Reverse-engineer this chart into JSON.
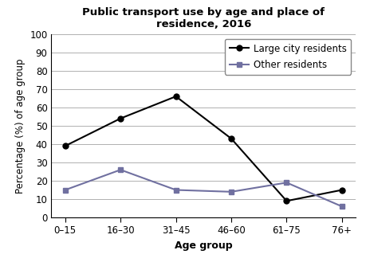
{
  "title": "Public transport use by age and place of\nresidence, 2016",
  "xlabel": "Age group",
  "ylabel": "Percentage (%) of age group",
  "categories": [
    "0–15",
    "16–30",
    "31–45",
    "46–60",
    "61–75",
    "76+"
  ],
  "large_city": [
    39,
    54,
    66,
    43,
    9,
    15
  ],
  "other_residents": [
    15,
    26,
    15,
    14,
    19,
    6
  ],
  "large_city_label": "Large city residents",
  "other_label": "Other residents",
  "large_city_color": "#000000",
  "other_color": "#7070a0",
  "ylim": [
    0,
    100
  ],
  "yticks": [
    0,
    10,
    20,
    30,
    40,
    50,
    60,
    70,
    80,
    90,
    100
  ],
  "bg_color": "#ffffff",
  "grid_color": "#b0b0b0",
  "title_fontsize": 9.5,
  "label_fontsize": 9,
  "tick_fontsize": 8.5,
  "legend_fontsize": 8.5
}
